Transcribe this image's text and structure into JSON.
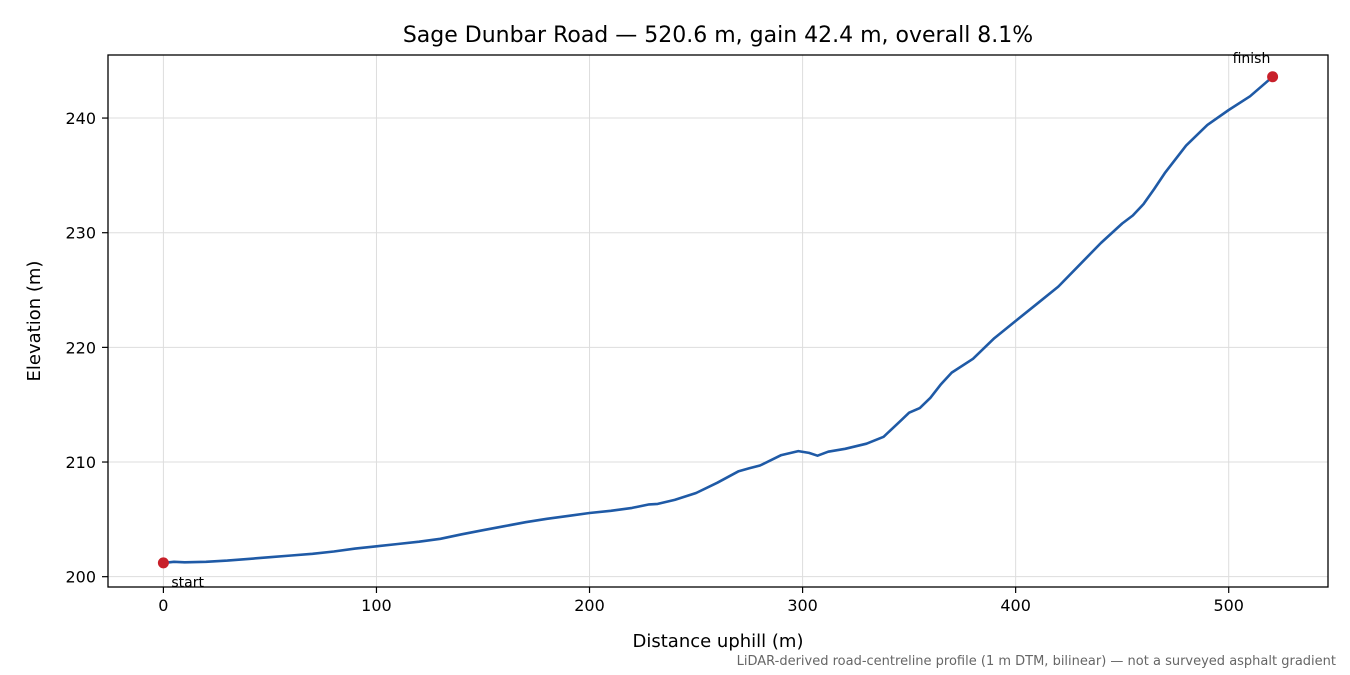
{
  "colors": {
    "line": "#1f5aa6",
    "marker": "#c8202a",
    "grid": "#dddddd",
    "footnote": "#666666"
  },
  "chart_data": {
    "type": "line",
    "title": "Sage Dunbar Road — 520.6 m, gain 42.4 m, overall 8.1%",
    "xlabel": "Distance uphill (m)",
    "ylabel": "Elevation (m)",
    "xlim": [
      -26,
      546.6
    ],
    "ylim": [
      199.1,
      245.5
    ],
    "xticks": [
      0,
      100,
      200,
      300,
      400,
      500
    ],
    "yticks": [
      200,
      210,
      220,
      230,
      240
    ],
    "grid": true,
    "series": [
      {
        "x": [
          0,
          5,
          10,
          20,
          30,
          40,
          50,
          60,
          70,
          80,
          90,
          100,
          110,
          120,
          130,
          140,
          150,
          160,
          170,
          180,
          190,
          200,
          210,
          220,
          228,
          232,
          240,
          250,
          260,
          270,
          275,
          280,
          290,
          298,
          303,
          307,
          312,
          320,
          330,
          338,
          342,
          346,
          350,
          355,
          360,
          365,
          370,
          380,
          390,
          400,
          410,
          420,
          430,
          440,
          450,
          455,
          460,
          465,
          470,
          480,
          490,
          500,
          510,
          520.6
        ],
        "y": [
          201.2,
          201.3,
          201.25,
          201.3,
          201.4,
          201.55,
          201.7,
          201.85,
          202.0,
          202.2,
          202.45,
          202.65,
          202.85,
          203.05,
          203.3,
          203.7,
          204.05,
          204.4,
          204.75,
          205.05,
          205.3,
          205.55,
          205.75,
          206.0,
          206.3,
          206.35,
          206.7,
          207.3,
          208.2,
          209.2,
          209.45,
          209.7,
          210.6,
          210.95,
          210.8,
          210.55,
          210.9,
          211.15,
          211.6,
          212.2,
          212.9,
          213.6,
          214.3,
          214.7,
          215.6,
          216.8,
          217.8,
          219.0,
          220.8,
          222.3,
          223.8,
          225.3,
          227.2,
          229.1,
          230.8,
          231.5,
          232.5,
          233.8,
          235.2,
          237.6,
          239.4,
          240.7,
          241.9,
          243.6
        ]
      }
    ],
    "points": [
      {
        "label": "start",
        "x": 0,
        "y": 201.2
      },
      {
        "label": "finish",
        "x": 520.6,
        "y": 243.6
      }
    ],
    "footnote": "LiDAR-derived road-centreline profile (1 m DTM, bilinear) — not a surveyed asphalt gradient"
  }
}
